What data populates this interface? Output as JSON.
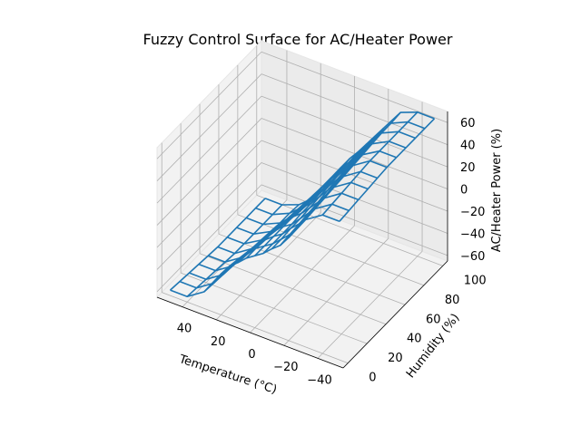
{
  "chart_data": {
    "type": "surface-wireframe-3d",
    "title": "Fuzzy Control Surface for AC/Heater Power",
    "xlabel": "Temperature (°C)",
    "ylabel": "Humidity (%)",
    "zlabel": "AC/Heater Power (%)",
    "xlim": [
      -55,
      55
    ],
    "ylim": [
      -5,
      105
    ],
    "zlim": [
      -65,
      70
    ],
    "xticks": [
      -40,
      -20,
      0,
      20,
      40
    ],
    "yticks": [
      0,
      20,
      40,
      60,
      80,
      100
    ],
    "zticks": [
      -60,
      -40,
      -20,
      0,
      20,
      40,
      60
    ],
    "xtick_labels": [
      "−40",
      "−20",
      "0",
      "20",
      "40"
    ],
    "ytick_labels": [
      "0",
      "20",
      "40",
      "60",
      "80",
      "100"
    ],
    "ztick_labels": [
      "−60",
      "−40",
      "−20",
      "0",
      "20",
      "40",
      "60"
    ],
    "grid": true,
    "line_color": "#1f77b4",
    "x": [
      -50,
      -40,
      -30,
      -20,
      -15,
      -10,
      -5,
      0,
      5,
      10,
      15,
      20,
      30,
      40,
      50
    ],
    "humidity": [
      0,
      10,
      20,
      30,
      40,
      50,
      60,
      70,
      80,
      90,
      100
    ],
    "z": [
      [
        60,
        60,
        50,
        28,
        18,
        12,
        5,
        0,
        -5,
        -12,
        -18,
        -28,
        -50,
        -60,
        -60
      ],
      [
        61,
        61,
        51,
        29,
        19,
        12,
        5,
        0,
        -5,
        -13,
        -20,
        -30,
        -51,
        -61,
        -61
      ],
      [
        62,
        62,
        52,
        30,
        20,
        13,
        5,
        0,
        -6,
        -14,
        -22,
        -32,
        -52,
        -62,
        -62
      ],
      [
        63,
        63,
        53,
        31,
        21,
        13,
        5,
        0,
        -6,
        -15,
        -24,
        -34,
        -53,
        -63,
        -63
      ],
      [
        64,
        64,
        54,
        32,
        22,
        14,
        6,
        0,
        -7,
        -16,
        -26,
        -36,
        -54,
        -64,
        -64
      ],
      [
        65,
        65,
        55,
        34,
        24,
        15,
        6,
        0,
        -8,
        -18,
        -28,
        -38,
        -55,
        -65,
        -65
      ],
      [
        65,
        65,
        56,
        35,
        25,
        16,
        7,
        0,
        -9,
        -20,
        -30,
        -40,
        -56,
        -65,
        -65
      ],
      [
        65,
        65,
        57,
        36,
        26,
        17,
        7,
        0,
        -10,
        -22,
        -32,
        -42,
        -57,
        -65,
        -65
      ],
      [
        65,
        65,
        58,
        37,
        27,
        17,
        8,
        0,
        -11,
        -23,
        -34,
        -44,
        -58,
        -65,
        -65
      ],
      [
        65,
        65,
        58,
        38,
        28,
        18,
        8,
        0,
        -12,
        -24,
        -35,
        -45,
        -58,
        -65,
        -65
      ],
      [
        65,
        65,
        59,
        39,
        29,
        19,
        9,
        0,
        -12,
        -25,
        -36,
        -46,
        -59,
        -65,
        -65
      ]
    ]
  }
}
